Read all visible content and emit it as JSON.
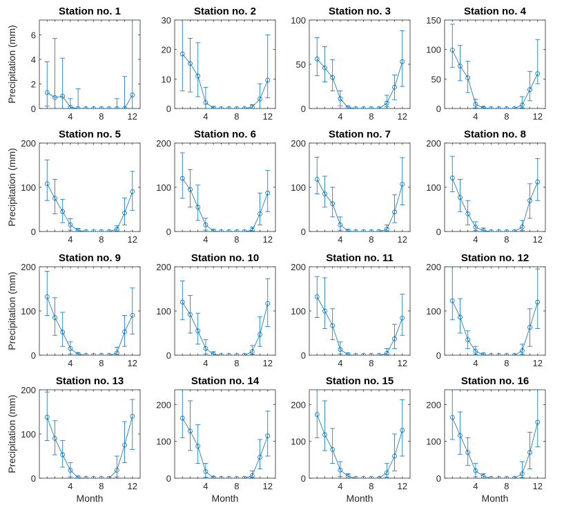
{
  "figure": {
    "line_color": "#0072BD",
    "xlabel": "Month",
    "ylabel": "Precipitation (mm)"
  },
  "chart_data": [
    {
      "type": "line",
      "title": "Station no. 1",
      "x": [
        1,
        2,
        3,
        4,
        5,
        6,
        7,
        8,
        9,
        10,
        11,
        12
      ],
      "values": [
        1.3,
        0.9,
        1.0,
        0.1,
        0,
        0,
        0,
        0,
        0,
        0,
        0,
        1.1
      ],
      "err_low": [
        0.2,
        0,
        0,
        0,
        0,
        0,
        0,
        0,
        0,
        0,
        0,
        0
      ],
      "err_high": [
        3.8,
        5.7,
        4.1,
        0.8,
        1.6,
        0,
        0,
        0,
        0,
        0.8,
        2.6,
        7.2
      ],
      "ylim": [
        0,
        7.2
      ],
      "yticks": [
        0,
        2,
        4,
        6
      ],
      "xticks": [
        4,
        8,
        12
      ],
      "xlim": [
        0,
        13
      ]
    },
    {
      "type": "line",
      "title": "Station no. 2",
      "x": [
        1,
        2,
        3,
        4,
        5,
        6,
        7,
        8,
        9,
        10,
        11,
        12
      ],
      "values": [
        18.5,
        15.3,
        11.0,
        2.0,
        0.1,
        0,
        0,
        0,
        0,
        0.5,
        3.2,
        9.6
      ],
      "err_low": [
        6,
        5.6,
        4,
        0,
        0,
        0,
        0,
        0,
        0,
        0,
        0,
        3.6
      ],
      "err_high": [
        30,
        23.8,
        22.3,
        7.2,
        0.7,
        0,
        0,
        0,
        0,
        1.3,
        8.4,
        25
      ],
      "ylim": [
        0,
        30
      ],
      "yticks": [
        0,
        10,
        20,
        30
      ],
      "xticks": [
        4,
        8,
        12
      ],
      "xlim": [
        0,
        13
      ]
    },
    {
      "type": "line",
      "title": "Station no. 3",
      "x": [
        1,
        2,
        3,
        4,
        5,
        6,
        7,
        8,
        9,
        10,
        11,
        12
      ],
      "values": [
        56,
        46,
        35,
        11,
        1,
        0,
        0,
        0,
        0,
        6,
        24,
        53
      ],
      "err_low": [
        37,
        30,
        20,
        3,
        0,
        0,
        0,
        0,
        0,
        2,
        10,
        25
      ],
      "err_high": [
        80,
        70,
        55,
        20,
        3,
        0,
        0,
        0,
        0,
        15,
        38,
        88
      ],
      "ylim": [
        0,
        100
      ],
      "yticks": [
        0,
        50,
        100
      ],
      "xticks": [
        4,
        8,
        12
      ],
      "xlim": [
        0,
        13
      ]
    },
    {
      "type": "line",
      "title": "Station no. 4",
      "x": [
        1,
        2,
        3,
        4,
        5,
        6,
        7,
        8,
        9,
        10,
        11,
        12
      ],
      "values": [
        99,
        72,
        52,
        7,
        1,
        0,
        0,
        0,
        0,
        6,
        32,
        59
      ],
      "err_low": [
        70,
        47,
        27,
        1,
        0,
        0,
        0,
        0,
        0,
        1,
        13,
        42
      ],
      "err_high": [
        143,
        107,
        80,
        16,
        3,
        0,
        0,
        0,
        0,
        20,
        63,
        117
      ],
      "ylim": [
        0,
        150
      ],
      "yticks": [
        0,
        50,
        100,
        150
      ],
      "xticks": [
        4,
        8,
        12
      ],
      "xlim": [
        0,
        13
      ]
    },
    {
      "type": "line",
      "title": "Station no. 5",
      "x": [
        1,
        2,
        3,
        4,
        5,
        6,
        7,
        8,
        9,
        10,
        11,
        12
      ],
      "values": [
        108,
        75,
        45,
        15,
        2,
        0,
        0,
        0,
        0,
        5,
        42,
        90
      ],
      "err_low": [
        70,
        40,
        20,
        3,
        0,
        0,
        0,
        0,
        0,
        1,
        15,
        48
      ],
      "err_high": [
        162,
        118,
        73,
        29,
        7,
        0,
        0,
        0,
        0,
        13,
        76,
        136
      ],
      "ylim": [
        0,
        200
      ],
      "yticks": [
        0,
        100,
        200
      ],
      "xticks": [
        4,
        8,
        12
      ],
      "xlim": [
        0,
        13
      ]
    },
    {
      "type": "line",
      "title": "Station no. 6",
      "x": [
        1,
        2,
        3,
        4,
        5,
        6,
        7,
        8,
        9,
        10,
        11,
        12
      ],
      "values": [
        120,
        95,
        55,
        15,
        1,
        0,
        0,
        0,
        0,
        3,
        40,
        87
      ],
      "err_low": [
        75,
        55,
        25,
        3,
        0,
        0,
        0,
        0,
        0,
        1,
        15,
        45
      ],
      "err_high": [
        178,
        140,
        105,
        30,
        5,
        0,
        0,
        0,
        0,
        10,
        87,
        138
      ],
      "ylim": [
        0,
        200
      ],
      "yticks": [
        0,
        100,
        200
      ],
      "xticks": [
        4,
        8,
        12
      ],
      "xlim": [
        0,
        13
      ]
    },
    {
      "type": "line",
      "title": "Station no. 7",
      "x": [
        1,
        2,
        3,
        4,
        5,
        6,
        7,
        8,
        9,
        10,
        11,
        12
      ],
      "values": [
        118,
        85,
        63,
        15,
        1,
        0,
        0,
        0,
        0,
        5,
        44,
        107
      ],
      "err_low": [
        85,
        55,
        33,
        3,
        0,
        0,
        0,
        0,
        0,
        1,
        20,
        60
      ],
      "err_high": [
        168,
        125,
        100,
        33,
        5,
        0,
        0,
        0,
        0,
        15,
        83,
        167
      ],
      "ylim": [
        0,
        200
      ],
      "yticks": [
        0,
        100,
        200
      ],
      "xticks": [
        4,
        8,
        12
      ],
      "xlim": [
        0,
        13
      ]
    },
    {
      "type": "line",
      "title": "Station no. 8",
      "x": [
        1,
        2,
        3,
        4,
        5,
        6,
        7,
        8,
        9,
        10,
        11,
        12
      ],
      "values": [
        121,
        77,
        40,
        10,
        2,
        0,
        0,
        0,
        0,
        10,
        70,
        112
      ],
      "err_low": [
        90,
        45,
        15,
        2,
        0,
        0,
        0,
        0,
        0,
        2,
        30,
        70
      ],
      "err_high": [
        170,
        118,
        70,
        22,
        8,
        0,
        0,
        0,
        0,
        25,
        108,
        165
      ],
      "ylim": [
        0,
        200
      ],
      "yticks": [
        0,
        100,
        200
      ],
      "xticks": [
        4,
        8,
        12
      ],
      "xlim": [
        0,
        13
      ]
    },
    {
      "type": "line",
      "title": "Station no. 9",
      "x": [
        1,
        2,
        3,
        4,
        5,
        6,
        7,
        8,
        9,
        10,
        11,
        12
      ],
      "values": [
        132,
        85,
        52,
        15,
        2,
        0,
        0,
        0,
        0,
        5,
        53,
        90
      ],
      "err_low": [
        90,
        45,
        20,
        3,
        0,
        0,
        0,
        0,
        0,
        1,
        20,
        48
      ],
      "err_high": [
        190,
        130,
        97,
        30,
        5,
        0,
        0,
        0,
        0,
        18,
        90,
        152
      ],
      "ylim": [
        0,
        200
      ],
      "yticks": [
        0,
        100,
        200
      ],
      "xticks": [
        4,
        8,
        12
      ],
      "xlim": [
        0,
        13
      ]
    },
    {
      "type": "line",
      "title": "Station no. 10",
      "x": [
        1,
        2,
        3,
        4,
        5,
        6,
        7,
        8,
        9,
        10,
        11,
        12
      ],
      "values": [
        120,
        92,
        55,
        15,
        2,
        0,
        0,
        0,
        0,
        8,
        47,
        117
      ],
      "err_low": [
        80,
        50,
        25,
        3,
        0,
        0,
        0,
        0,
        0,
        2,
        20,
        65
      ],
      "err_high": [
        168,
        135,
        95,
        35,
        8,
        0,
        0,
        0,
        0,
        22,
        87,
        173
      ],
      "ylim": [
        0,
        200
      ],
      "yticks": [
        0,
        100,
        200
      ],
      "xticks": [
        4,
        8,
        12
      ],
      "xlim": [
        0,
        13
      ]
    },
    {
      "type": "line",
      "title": "Station no. 11",
      "x": [
        1,
        2,
        3,
        4,
        5,
        6,
        7,
        8,
        9,
        10,
        11,
        12
      ],
      "values": [
        132,
        100,
        67,
        13,
        1,
        0,
        0,
        0,
        0,
        4,
        37,
        84
      ],
      "err_low": [
        85,
        60,
        35,
        3,
        0,
        0,
        0,
        0,
        0,
        1,
        15,
        45
      ],
      "err_high": [
        178,
        175,
        105,
        30,
        5,
        0,
        0,
        0,
        0,
        15,
        70,
        138
      ],
      "ylim": [
        0,
        200
      ],
      "yticks": [
        0,
        100,
        200
      ],
      "xticks": [
        4,
        8,
        12
      ],
      "xlim": [
        0,
        13
      ]
    },
    {
      "type": "line",
      "title": "Station no. 12",
      "x": [
        1,
        2,
        3,
        4,
        5,
        6,
        7,
        8,
        9,
        10,
        11,
        12
      ],
      "values": [
        123,
        86,
        35,
        9,
        1,
        0,
        0,
        0,
        0,
        10,
        63,
        120
      ],
      "err_low": [
        80,
        50,
        15,
        2,
        0,
        0,
        0,
        0,
        0,
        2,
        20,
        60
      ],
      "err_high": [
        200,
        128,
        55,
        20,
        5,
        0,
        0,
        0,
        0,
        25,
        105,
        195
      ],
      "ylim": [
        0,
        200
      ],
      "yticks": [
        0,
        100,
        200
      ],
      "xticks": [
        4,
        8,
        12
      ],
      "xlim": [
        0,
        13
      ]
    },
    {
      "type": "line",
      "title": "Station no. 13",
      "x": [
        1,
        2,
        3,
        4,
        5,
        6,
        7,
        8,
        9,
        10,
        11,
        12
      ],
      "values": [
        138,
        90,
        53,
        18,
        1,
        0,
        0,
        0,
        0,
        18,
        75,
        140
      ],
      "err_low": [
        85,
        53,
        25,
        3,
        0,
        0,
        0,
        0,
        0,
        3,
        35,
        65
      ],
      "err_high": [
        195,
        130,
        85,
        35,
        5,
        0,
        0,
        0,
        0,
        50,
        128,
        178
      ],
      "ylim": [
        0,
        200
      ],
      "yticks": [
        0,
        100,
        200
      ],
      "xticks": [
        4,
        8,
        12
      ],
      "xlim": [
        0,
        13
      ]
    },
    {
      "type": "line",
      "title": "Station no. 14",
      "x": [
        1,
        2,
        3,
        4,
        5,
        6,
        7,
        8,
        9,
        10,
        11,
        12
      ],
      "values": [
        163,
        128,
        87,
        18,
        1,
        0,
        0,
        0,
        0,
        7,
        57,
        115
      ],
      "err_low": [
        110,
        75,
        40,
        3,
        0,
        0,
        0,
        0,
        0,
        2,
        25,
        60
      ],
      "err_high": [
        240,
        210,
        145,
        40,
        5,
        0,
        0,
        0,
        0,
        20,
        105,
        182
      ],
      "ylim": [
        0,
        240
      ],
      "yticks": [
        0,
        100,
        200
      ],
      "xticks": [
        4,
        8,
        12
      ],
      "xlim": [
        0,
        13
      ]
    },
    {
      "type": "line",
      "title": "Station no. 15",
      "x": [
        1,
        2,
        3,
        4,
        5,
        6,
        7,
        8,
        9,
        10,
        11,
        12
      ],
      "values": [
        173,
        118,
        78,
        22,
        5,
        0,
        0,
        0,
        0,
        15,
        60,
        130
      ],
      "err_low": [
        110,
        75,
        40,
        5,
        0,
        0,
        0,
        0,
        0,
        3,
        20,
        60
      ],
      "err_high": [
        240,
        210,
        135,
        45,
        12,
        0,
        0,
        0,
        0,
        40,
        120,
        213
      ],
      "ylim": [
        0,
        240
      ],
      "yticks": [
        0,
        100,
        200
      ],
      "xticks": [
        4,
        8,
        12
      ],
      "xlim": [
        0,
        13
      ]
    },
    {
      "type": "line",
      "title": "Station no. 16",
      "x": [
        1,
        2,
        3,
        4,
        5,
        6,
        7,
        8,
        9,
        10,
        11,
        12
      ],
      "values": [
        165,
        116,
        70,
        20,
        5,
        0,
        0,
        0,
        0,
        12,
        70,
        152
      ],
      "err_low": [
        105,
        65,
        35,
        4,
        0,
        0,
        0,
        0,
        0,
        2,
        25,
        85
      ],
      "err_high": [
        240,
        180,
        110,
        40,
        12,
        0,
        0,
        0,
        0,
        45,
        125,
        240
      ],
      "ylim": [
        0,
        240
      ],
      "yticks": [
        0,
        100,
        200
      ],
      "xticks": [
        4,
        8,
        12
      ],
      "xlim": [
        0,
        13
      ]
    }
  ]
}
